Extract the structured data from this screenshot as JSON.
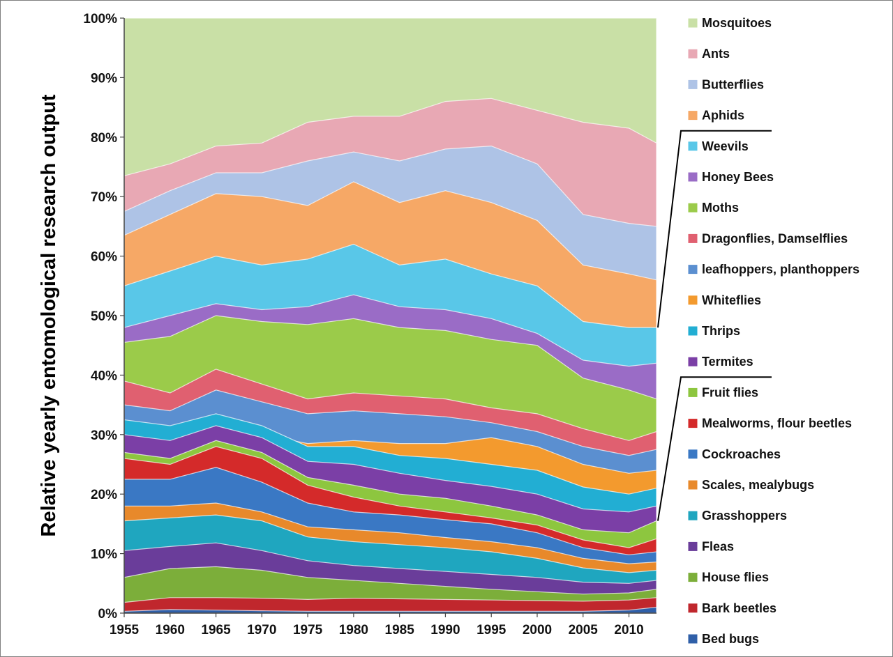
{
  "chart_data": {
    "type": "area",
    "stacked": true,
    "normalized": true,
    "ylabel": "Relative yearly entomological research output",
    "xlabel": "",
    "title": "",
    "x_range": [
      1955,
      2013
    ],
    "x_ticks": [
      "1955",
      "1960",
      "1965",
      "1970",
      "1975",
      "1980",
      "1985",
      "1990",
      "1995",
      "2000",
      "2005",
      "2010"
    ],
    "y_ticks": [
      "0%",
      "10%",
      "20%",
      "30%",
      "40%",
      "50%",
      "60%",
      "70%",
      "80%",
      "90%",
      "100%"
    ],
    "ylim": [
      0,
      100
    ],
    "grid": false,
    "legend_position": "right",
    "x": [
      1955,
      1960,
      1965,
      1970,
      1975,
      1980,
      1985,
      1990,
      1995,
      2000,
      2005,
      2010,
      2013
    ],
    "series": [
      {
        "name": "Bed bugs",
        "color": "#2f5fa8",
        "cumulative_top": [
          0.3,
          0.6,
          0.5,
          0.4,
          0.3,
          0.3,
          0.3,
          0.3,
          0.3,
          0.3,
          0.3,
          0.5,
          1.0
        ]
      },
      {
        "name": "Bark beetles",
        "color": "#c0272d",
        "cumulative_top": [
          1.8,
          2.6,
          2.6,
          2.5,
          2.3,
          2.5,
          2.4,
          2.3,
          2.2,
          2.1,
          2.0,
          2.2,
          2.6
        ]
      },
      {
        "name": "House flies",
        "color": "#7cae3a",
        "cumulative_top": [
          6.0,
          7.5,
          7.8,
          7.2,
          6.0,
          5.5,
          5.0,
          4.5,
          4.0,
          3.6,
          3.2,
          3.4,
          4.0
        ]
      },
      {
        "name": "Fleas",
        "color": "#6a3d9a",
        "cumulative_top": [
          10.5,
          11.2,
          11.8,
          10.5,
          8.8,
          8.0,
          7.5,
          7.0,
          6.5,
          6.0,
          5.2,
          5.0,
          5.5
        ]
      },
      {
        "name": "Grasshoppers",
        "color": "#1fa6bf",
        "cumulative_top": [
          15.5,
          16.0,
          16.5,
          15.5,
          12.8,
          12.0,
          11.5,
          11.0,
          10.3,
          9.2,
          7.6,
          6.8,
          7.2
        ]
      },
      {
        "name": "Scales, mealybugs",
        "color": "#e8892b",
        "cumulative_top": [
          18.0,
          18.0,
          18.5,
          17.0,
          14.5,
          14.0,
          13.5,
          12.7,
          12.0,
          11.0,
          9.2,
          8.3,
          8.6
        ]
      },
      {
        "name": "Cockroaches",
        "color": "#3a78c4",
        "cumulative_top": [
          22.5,
          22.5,
          24.5,
          22.0,
          18.5,
          17.0,
          16.5,
          15.7,
          15.0,
          13.5,
          11.0,
          9.8,
          10.3
        ]
      },
      {
        "name": "Mealworms, flour beetles",
        "color": "#d42a2a",
        "cumulative_top": [
          26.0,
          25.0,
          28.0,
          26.0,
          21.5,
          19.5,
          18.0,
          17.0,
          16.0,
          14.8,
          12.3,
          11.0,
          12.5
        ]
      },
      {
        "name": "Fruit flies",
        "color": "#8dc63f",
        "cumulative_top": [
          27.0,
          26.0,
          29.0,
          27.0,
          22.8,
          21.5,
          20.0,
          19.3,
          18.0,
          16.5,
          14.0,
          13.5,
          15.5
        ]
      },
      {
        "name": "Termites",
        "color": "#7b3fa6",
        "cumulative_top": [
          30.0,
          29.0,
          31.5,
          29.5,
          25.5,
          25.0,
          23.5,
          22.3,
          21.3,
          20.0,
          17.5,
          17.0,
          18.0
        ]
      },
      {
        "name": "Thrips",
        "color": "#22aed3",
        "cumulative_top": [
          32.5,
          31.5,
          33.5,
          31.5,
          28.0,
          28.0,
          26.5,
          26.0,
          25.0,
          24.0,
          21.2,
          20.0,
          21.0
        ]
      },
      {
        "name": "Whiteflies",
        "color": "#f39a2e",
        "cumulative_top": [
          31.0,
          29.5,
          33.0,
          30.0,
          28.5,
          29.0,
          28.5,
          28.5,
          29.5,
          28.0,
          25.0,
          23.5,
          24.0
        ]
      },
      {
        "name": "leafhoppers, planthoppers",
        "color": "#5b8fd0",
        "cumulative_top": [
          35.0,
          34.0,
          37.5,
          35.5,
          33.5,
          34.0,
          33.5,
          33.0,
          32.0,
          30.5,
          28.0,
          26.5,
          27.5
        ]
      },
      {
        "name": "Dragonflies, Damselflies",
        "color": "#e06070",
        "cumulative_top": [
          39.0,
          37.0,
          41.0,
          38.5,
          36.0,
          37.0,
          36.5,
          36.0,
          34.5,
          33.5,
          31.0,
          29.0,
          30.5
        ]
      },
      {
        "name": "Moths",
        "color": "#9bcb4a",
        "cumulative_top": [
          45.5,
          46.5,
          50.0,
          49.0,
          48.5,
          49.5,
          48.0,
          47.5,
          46.0,
          45.0,
          39.5,
          37.5,
          36.0
        ]
      },
      {
        "name": "Honey Bees",
        "color": "#9a6cc6",
        "cumulative_top": [
          48.0,
          50.0,
          52.0,
          51.0,
          51.5,
          53.5,
          51.5,
          51.0,
          49.5,
          47.0,
          42.5,
          41.5,
          42.0
        ]
      },
      {
        "name": "Weevils",
        "color": "#59c7e8",
        "cumulative_top": [
          55.0,
          57.5,
          60.0,
          58.5,
          59.5,
          62.0,
          58.5,
          59.5,
          57.0,
          55.0,
          49.0,
          48.0,
          48.0
        ]
      },
      {
        "name": "Aphids",
        "color": "#f6a866",
        "cumulative_top": [
          63.5,
          67.0,
          70.5,
          70.0,
          68.5,
          72.5,
          69.0,
          71.0,
          69.0,
          66.0,
          58.5,
          57.0,
          56.0
        ]
      },
      {
        "name": "Butterflies",
        "color": "#aec3e6",
        "cumulative_top": [
          67.5,
          71.0,
          74.0,
          74.0,
          76.0,
          77.5,
          76.0,
          78.0,
          78.5,
          75.5,
          67.0,
          65.5,
          65.0
        ]
      },
      {
        "name": "Ants",
        "color": "#e8a8b4",
        "cumulative_top": [
          73.5,
          75.5,
          78.5,
          79.0,
          82.5,
          83.5,
          83.5,
          86.0,
          86.5,
          84.5,
          82.5,
          81.5,
          79.0
        ]
      },
      {
        "name": "Mosquitoes",
        "color": "#c9e0a6",
        "cumulative_top": [
          100,
          100,
          100,
          100,
          100,
          100,
          100,
          100,
          100,
          100,
          100,
          100,
          100
        ]
      }
    ],
    "legend": [
      "Mosquitoes",
      "Ants",
      "Butterflies",
      "Aphids",
      "Weevils",
      "Honey Bees",
      "Moths",
      "Dragonflies, Damselflies",
      "leafhoppers, planthoppers",
      "Whiteflies",
      "Thrips",
      "Termites",
      "Fruit flies",
      "Mealworms, flour beetles",
      "Cockroaches",
      "Scales, mealybugs",
      "Grasshoppers",
      "Fleas",
      "House flies",
      "Bark beetles",
      "Bed bugs"
    ]
  }
}
